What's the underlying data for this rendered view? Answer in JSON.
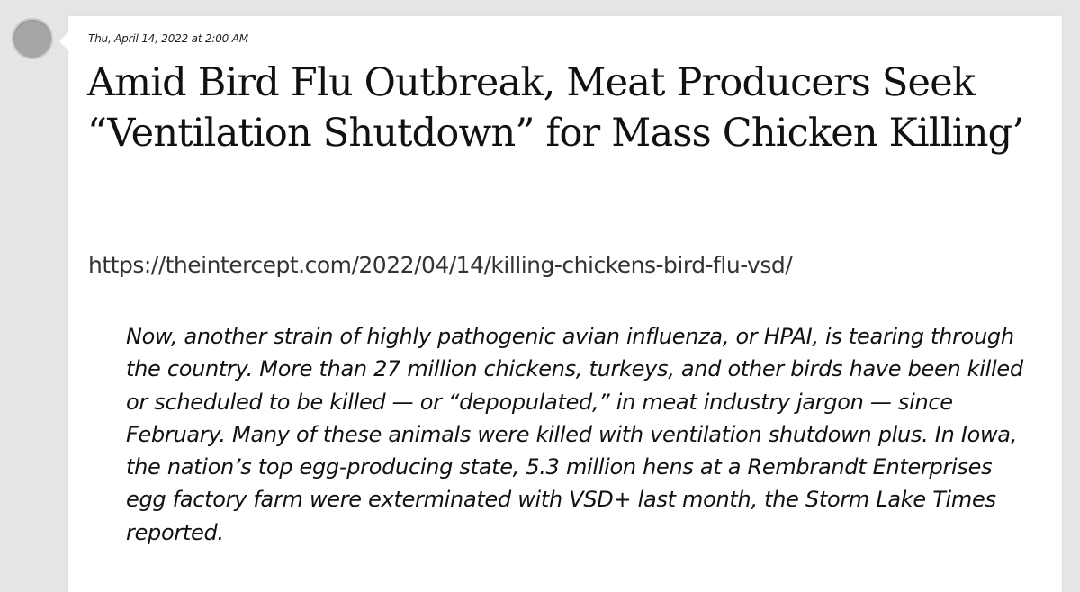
{
  "post": {
    "timestamp": "Thu, April 14, 2022 at 2:00 AM",
    "title": "Amid Bird Flu Outbreak, Meat Producers Seek “Ventilation Shutdown” for Mass Chicken Killing’",
    "link": "https://theintercept.com/2022/04/14/killing-chickens-bird-flu-vsd/",
    "quote": "Now, another strain of highly pathogenic avian influenza, or HPAI, is tearing through the country. More than 27 million chickens, turkeys, and other birds have been killed or scheduled to be killed — or “depopulated,” in meat industry jargon — since February. Many of these animals were killed with ventilation shutdown plus. In Iowa, the nation’s top egg-producing state, 5.3 million hens at a Rembrandt Enterprises egg factory farm were exterminated with VSD+ last month, the Storm Lake Times reported."
  },
  "colors": {
    "page_background": "#e5e5e5",
    "card_background": "#ffffff",
    "avatar": "#a6a6a6"
  }
}
